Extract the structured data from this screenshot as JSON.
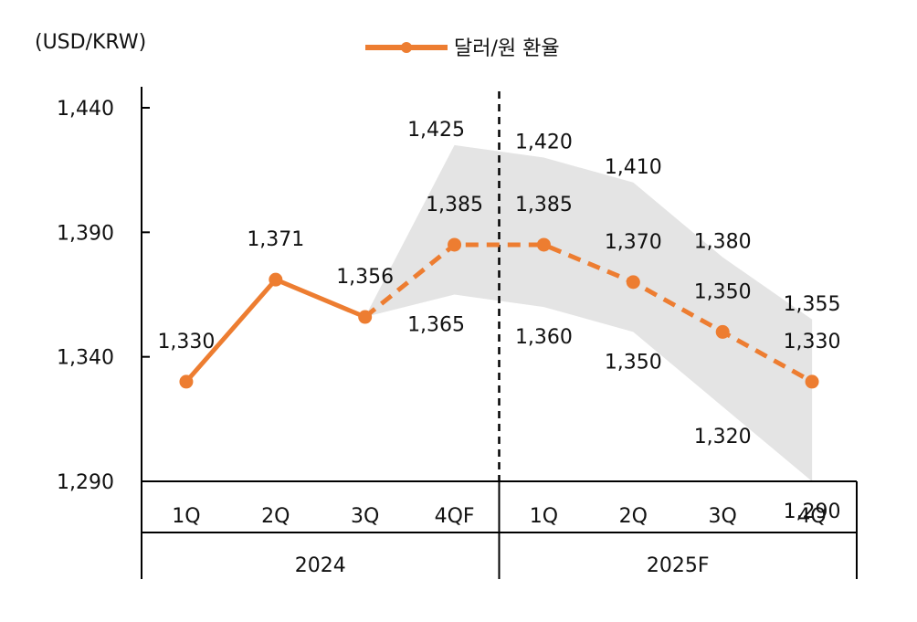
{
  "chart_data": {
    "type": "line",
    "unit_label": "(USD/KRW)",
    "legend": {
      "label": "달러/원 환율",
      "color": "#ED7D31",
      "placement": "top-center"
    },
    "y_ticks": [
      "1,290",
      "1,340",
      "1,390",
      "1,440"
    ],
    "ylim": [
      1290,
      1440
    ],
    "categories": [
      "1Q",
      "2Q",
      "3Q",
      "4QF",
      "1Q",
      "2Q",
      "3Q",
      "4Q"
    ],
    "groups": [
      {
        "label": "2024",
        "span": [
          0,
          3
        ]
      },
      {
        "label": "2025F",
        "span": [
          4,
          7
        ]
      }
    ],
    "series": [
      {
        "name": "달러/원 환율",
        "values": [
          1330,
          1371,
          1356,
          1385,
          1385,
          1370,
          1350,
          1330
        ],
        "labels": [
          "1,330",
          "1,371",
          "1,356",
          "1,385",
          "1,385",
          "1,370",
          "1,350",
          "1,330"
        ],
        "actual_upto_index": 2,
        "color": "#ED7D31"
      }
    ],
    "range_band": {
      "start_index": 2,
      "upper": [
        1356,
        1425,
        1420,
        1410,
        1380,
        1355
      ],
      "lower": [
        1356,
        1365,
        1360,
        1350,
        1320,
        1290
      ],
      "upper_labels": [
        "",
        "1,425",
        "1,420",
        "1,410",
        "1,380",
        "1,355"
      ],
      "lower_labels": [
        "",
        "1,365",
        "1,360",
        "1,350",
        "1,320",
        "1,290"
      ],
      "color": "#E4E4E4"
    },
    "divider_after_index": 3,
    "grid": false
  }
}
